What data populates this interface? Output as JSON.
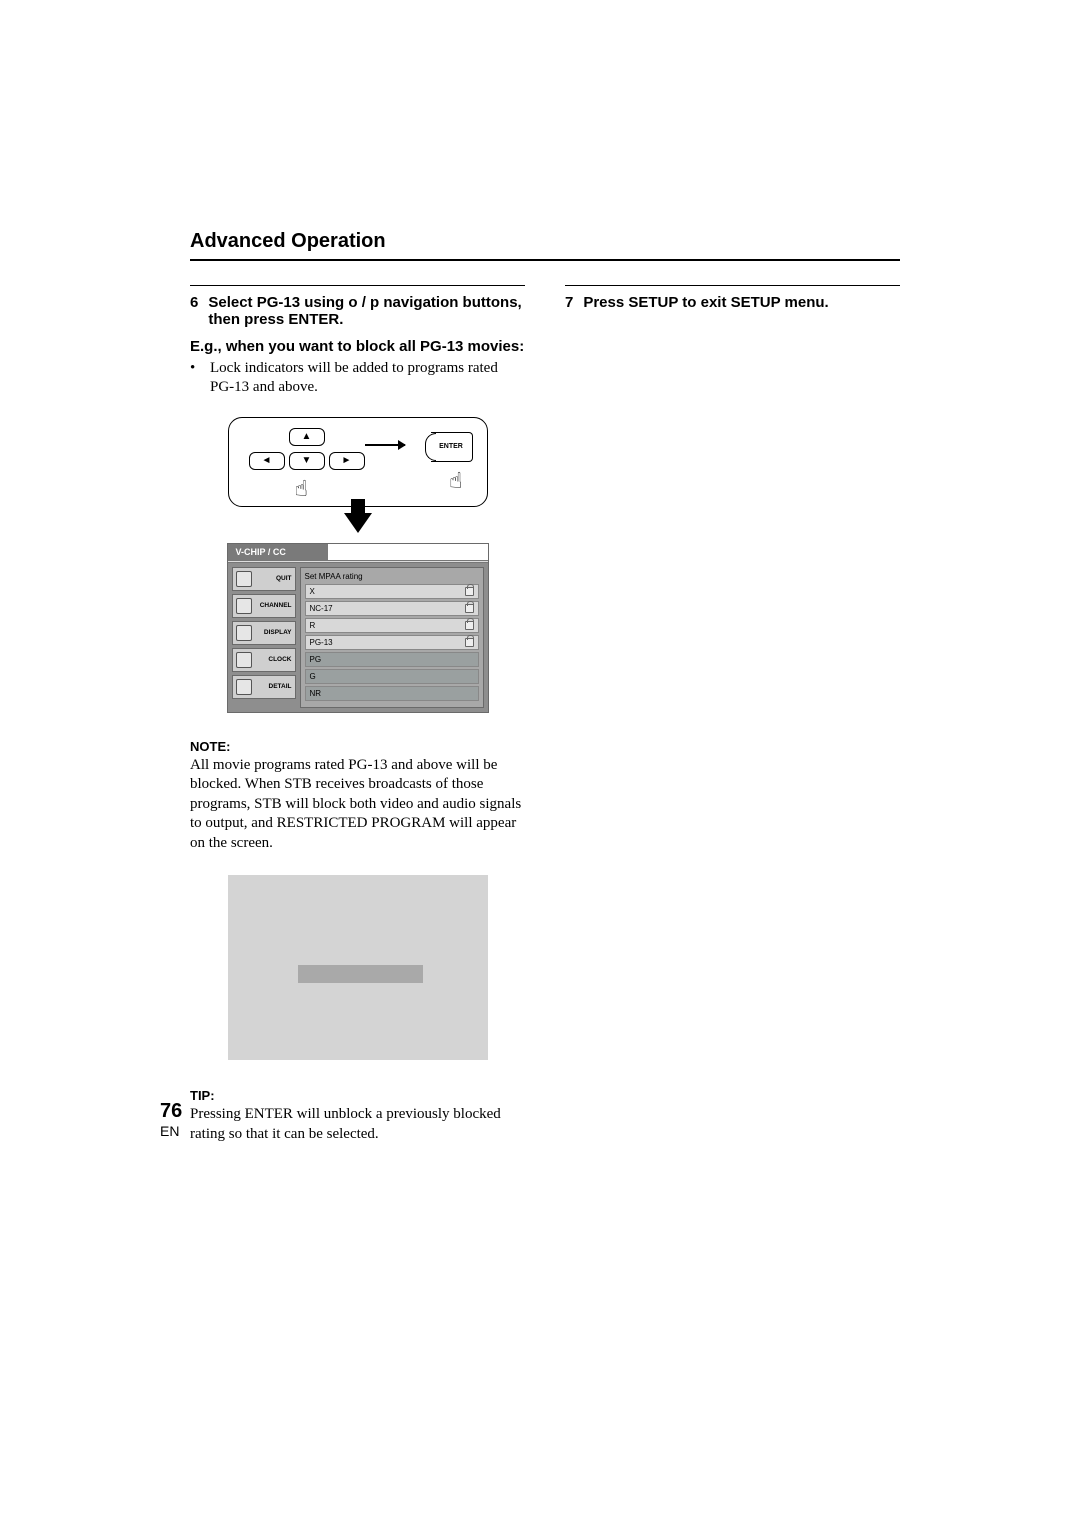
{
  "section_title": "Advanced Operation",
  "left": {
    "step_num": "6",
    "step_text": "Select PG-13 using o / p navigation buttons, then press ENTER.",
    "eg_heading": "E.g., when you want to block all PG-13 movies:",
    "bullet": "Lock indicators will be added to programs rated PG-13 and above.",
    "remote": {
      "enter_label": "ENTER"
    },
    "osd": {
      "tab": "V-CHIP / CC",
      "sidebar": [
        "QUIT",
        "CHANNEL",
        "DISPLAY",
        "CLOCK",
        "DETAIL"
      ],
      "main_title": "Set MPAA rating",
      "ratings": [
        {
          "label": "X",
          "locked": true,
          "selected": false
        },
        {
          "label": "NC-17",
          "locked": true,
          "selected": false
        },
        {
          "label": "R",
          "locked": true,
          "selected": false
        },
        {
          "label": "PG-13",
          "locked": true,
          "selected": false
        },
        {
          "label": "PG",
          "locked": false,
          "selected": true
        },
        {
          "label": "G",
          "locked": false,
          "selected": true
        },
        {
          "label": "NR",
          "locked": false,
          "selected": true
        }
      ]
    },
    "note_label": "NOTE:",
    "note_body": "All movie programs rated PG-13 and above will be blocked. When STB receives broadcasts of those programs, STB will block both video and audio signals to output, and RESTRICTED PROGRAM will appear on the screen.",
    "tip_label": "TIP:",
    "tip_body": "Pressing ENTER will unblock a previously blocked rating so that it can be selected."
  },
  "right": {
    "step_num": "7",
    "step_text": "Press SETUP to exit SETUP menu."
  },
  "footer": {
    "page": "76",
    "lang": "EN"
  }
}
